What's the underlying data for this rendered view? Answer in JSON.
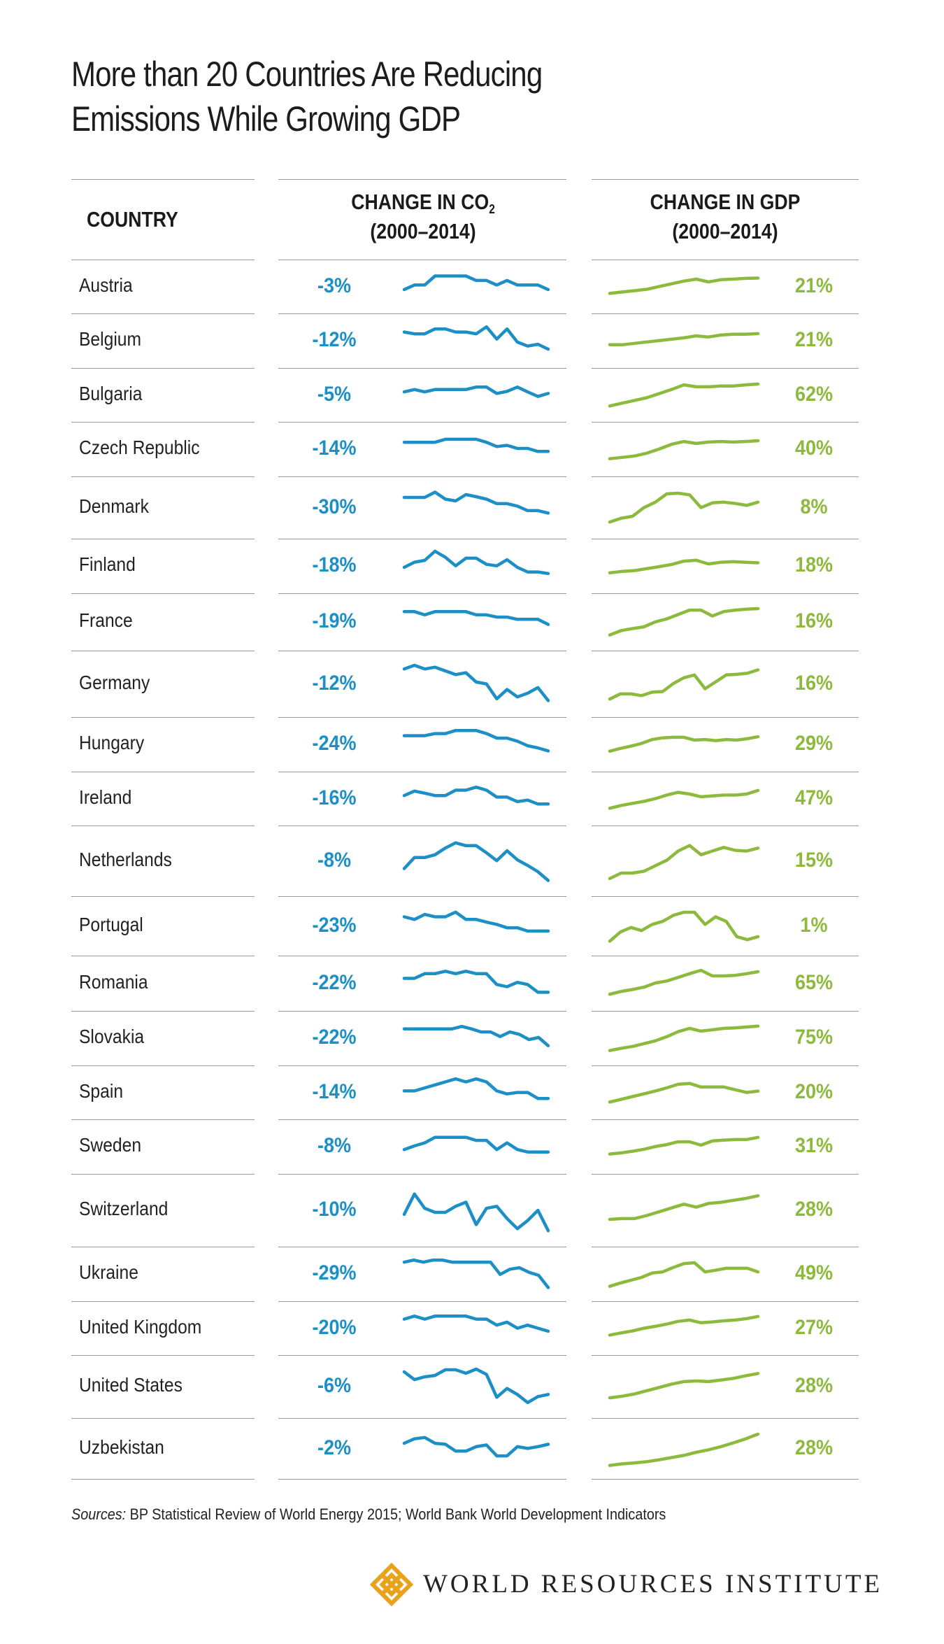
{
  "title_line1": "More than 20 Countries Are Reducing",
  "title_line2": "Emissions While Growing GDP",
  "headers": {
    "country": "COUNTRY",
    "co2_line1": "CHANGE IN CO",
    "co2_sub": "2",
    "co2_line2": "(2000–2014)",
    "gdp_line1": "CHANGE IN GDP",
    "gdp_line2": "(2000–2014)"
  },
  "colors": {
    "co2": "#1b8fc6",
    "gdp": "#8dba3c",
    "rule": "#9a9a9a"
  },
  "chart_data": {
    "type": "table",
    "columns": [
      "COUNTRY",
      "CHANGE IN CO2 (2000–2014)",
      "CHANGE IN GDP (2000–2014)"
    ],
    "rows": [
      {
        "country": "Austria",
        "co2": "-3%",
        "gdp": "21%",
        "co2_series": [
          0.4,
          0.55,
          0.55,
          0.85,
          0.85,
          0.85,
          0.85,
          0.7,
          0.7,
          0.55,
          0.7,
          0.55,
          0.55,
          0.55,
          0.4
        ],
        "gdp_series": [
          0.3,
          0.35,
          0.4,
          0.45,
          0.55,
          0.65,
          0.75,
          0.82,
          0.72,
          0.8,
          0.82,
          0.85,
          0.86
        ]
      },
      {
        "country": "Belgium",
        "co2": "-12%",
        "gdp": "21%",
        "co2_series": [
          0.78,
          0.72,
          0.72,
          0.88,
          0.88,
          0.78,
          0.78,
          0.72,
          0.95,
          0.55,
          0.88,
          0.45,
          0.32,
          0.38,
          0.22
        ],
        "gdp_series": [
          0.4,
          0.4,
          0.45,
          0.5,
          0.55,
          0.6,
          0.65,
          0.72,
          0.68,
          0.75,
          0.78,
          0.78,
          0.8
        ]
      },
      {
        "country": "Bulgaria",
        "co2": "-5%",
        "gdp": "62%",
        "co2_series": [
          0.6,
          0.68,
          0.6,
          0.68,
          0.68,
          0.68,
          0.68,
          0.76,
          0.76,
          0.55,
          0.62,
          0.76,
          0.6,
          0.45,
          0.55
        ],
        "gdp_series": [
          0.15,
          0.25,
          0.35,
          0.45,
          0.6,
          0.75,
          0.92,
          0.85,
          0.85,
          0.88,
          0.88,
          0.92,
          0.95
        ]
      },
      {
        "country": "Czech Republic",
        "co2": "-14%",
        "gdp": "40%",
        "co2_series": [
          0.72,
          0.72,
          0.72,
          0.72,
          0.82,
          0.82,
          0.82,
          0.82,
          0.72,
          0.58,
          0.62,
          0.52,
          0.52,
          0.42,
          0.42
        ],
        "gdp_series": [
          0.2,
          0.25,
          0.3,
          0.4,
          0.55,
          0.72,
          0.82,
          0.75,
          0.8,
          0.82,
          0.8,
          0.82,
          0.85
        ]
      },
      {
        "country": "Denmark",
        "co2": "-30%",
        "gdp": "8%",
        "co2_series": [
          0.8,
          0.8,
          0.8,
          0.95,
          0.75,
          0.7,
          0.88,
          0.82,
          0.75,
          0.62,
          0.62,
          0.55,
          0.42,
          0.42,
          0.35
        ],
        "gdp_series": [
          0.1,
          0.22,
          0.28,
          0.55,
          0.72,
          0.98,
          1.0,
          0.95,
          0.55,
          0.7,
          0.72,
          0.68,
          0.62,
          0.72
        ]
      },
      {
        "country": "Finland",
        "co2": "-18%",
        "gdp": "18%",
        "co2_series": [
          0.45,
          0.62,
          0.68,
          0.98,
          0.78,
          0.5,
          0.75,
          0.75,
          0.55,
          0.5,
          0.7,
          0.45,
          0.3,
          0.3,
          0.25
        ],
        "gdp_series": [
          0.3,
          0.35,
          0.38,
          0.45,
          0.52,
          0.6,
          0.72,
          0.75,
          0.62,
          0.68,
          0.7,
          0.68,
          0.66
        ]
      },
      {
        "country": "France",
        "co2": "-19%",
        "gdp": "16%",
        "co2_series": [
          0.82,
          0.82,
          0.72,
          0.82,
          0.82,
          0.82,
          0.82,
          0.72,
          0.72,
          0.65,
          0.65,
          0.58,
          0.58,
          0.58,
          0.42
        ],
        "gdp_series": [
          0.1,
          0.25,
          0.32,
          0.38,
          0.55,
          0.65,
          0.8,
          0.95,
          0.95,
          0.75,
          0.9,
          0.95,
          0.98,
          1.0
        ]
      },
      {
        "country": "Germany",
        "co2": "-12%",
        "gdp": "16%",
        "co2_series": [
          0.9,
          1.0,
          0.9,
          0.95,
          0.85,
          0.75,
          0.8,
          0.55,
          0.5,
          0.1,
          0.35,
          0.15,
          0.25,
          0.4,
          0.05
        ],
        "gdp_series": [
          0.1,
          0.25,
          0.25,
          0.2,
          0.3,
          0.32,
          0.55,
          0.72,
          0.8,
          0.4,
          0.6,
          0.8,
          0.82,
          0.85,
          0.95
        ]
      },
      {
        "country": "Hungary",
        "co2": "-24%",
        "gdp": "29%",
        "co2_series": [
          0.78,
          0.78,
          0.78,
          0.85,
          0.85,
          0.95,
          0.95,
          0.95,
          0.85,
          0.7,
          0.7,
          0.6,
          0.45,
          0.38,
          0.28
        ],
        "gdp_series": [
          0.3,
          0.4,
          0.48,
          0.58,
          0.72,
          0.78,
          0.8,
          0.8,
          0.7,
          0.72,
          0.68,
          0.72,
          0.7,
          0.75,
          0.82
        ]
      },
      {
        "country": "Ireland",
        "co2": "-16%",
        "gdp": "47%",
        "co2_series": [
          0.6,
          0.75,
          0.68,
          0.6,
          0.6,
          0.78,
          0.78,
          0.88,
          0.78,
          0.55,
          0.55,
          0.4,
          0.45,
          0.32,
          0.32
        ],
        "gdp_series": [
          0.2,
          0.3,
          0.38,
          0.45,
          0.55,
          0.68,
          0.78,
          0.72,
          0.62,
          0.65,
          0.68,
          0.68,
          0.72,
          0.85
        ]
      },
      {
        "country": "Netherlands",
        "co2": "-8%",
        "gdp": "15%",
        "co2_series": [
          0.3,
          0.58,
          0.58,
          0.65,
          0.82,
          0.95,
          0.88,
          0.88,
          0.7,
          0.5,
          0.75,
          0.52,
          0.38,
          0.22,
          0.0
        ],
        "gdp_series": [
          0.05,
          0.2,
          0.2,
          0.25,
          0.4,
          0.55,
          0.8,
          0.95,
          0.7,
          0.8,
          0.9,
          0.82,
          0.8,
          0.88
        ]
      },
      {
        "country": "Portugal",
        "co2": "-23%",
        "gdp": "1%",
        "co2_series": [
          0.78,
          0.7,
          0.85,
          0.78,
          0.78,
          0.92,
          0.7,
          0.7,
          0.62,
          0.55,
          0.45,
          0.45,
          0.35,
          0.35,
          0.35
        ],
        "gdp_series": [
          0.05,
          0.35,
          0.5,
          0.4,
          0.6,
          0.7,
          0.9,
          1.0,
          1.0,
          0.6,
          0.85,
          0.7,
          0.2,
          0.1,
          0.2
        ]
      },
      {
        "country": "Romania",
        "co2": "-22%",
        "gdp": "65%",
        "co2_series": [
          0.65,
          0.65,
          0.8,
          0.8,
          0.88,
          0.8,
          0.88,
          0.8,
          0.8,
          0.45,
          0.38,
          0.52,
          0.45,
          0.2,
          0.2
        ],
        "gdp_series": [
          0.15,
          0.25,
          0.32,
          0.4,
          0.55,
          0.62,
          0.75,
          0.88,
          1.0,
          0.8,
          0.8,
          0.82,
          0.88,
          0.95
        ]
      },
      {
        "country": "Slovakia",
        "co2": "-22%",
        "gdp": "75%",
        "co2_series": [
          0.8,
          0.8,
          0.8,
          0.8,
          0.8,
          0.8,
          0.88,
          0.8,
          0.7,
          0.7,
          0.55,
          0.7,
          0.62,
          0.45,
          0.52,
          0.25
        ],
        "gdp_series": [
          0.1,
          0.18,
          0.25,
          0.35,
          0.45,
          0.6,
          0.78,
          0.9,
          0.8,
          0.85,
          0.9,
          0.92,
          0.95,
          0.98
        ]
      },
      {
        "country": "Spain",
        "co2": "-14%",
        "gdp": "20%",
        "co2_series": [
          0.55,
          0.55,
          0.65,
          0.75,
          0.85,
          0.95,
          0.85,
          0.95,
          0.85,
          0.55,
          0.45,
          0.5,
          0.5,
          0.3,
          0.3
        ],
        "gdp_series": [
          0.2,
          0.3,
          0.4,
          0.5,
          0.6,
          0.72,
          0.85,
          0.88,
          0.75,
          0.75,
          0.75,
          0.65,
          0.55,
          0.6
        ]
      },
      {
        "country": "Sweden",
        "co2": "-8%",
        "gdp": "31%",
        "co2_series": [
          0.4,
          0.52,
          0.62,
          0.8,
          0.8,
          0.8,
          0.8,
          0.7,
          0.7,
          0.4,
          0.62,
          0.4,
          0.32,
          0.32,
          0.32
        ],
        "gdp_series": [
          0.28,
          0.32,
          0.38,
          0.45,
          0.55,
          0.62,
          0.72,
          0.72,
          0.6,
          0.75,
          0.78,
          0.8,
          0.8,
          0.88
        ]
      },
      {
        "country": "Switzerland",
        "co2": "-10%",
        "gdp": "28%",
        "co2_series": [
          0.4,
          0.9,
          0.55,
          0.45,
          0.45,
          0.6,
          0.7,
          0.15,
          0.55,
          0.6,
          0.3,
          0.05,
          0.25,
          0.5,
          0.0
        ],
        "gdp_series": [
          0.3,
          0.32,
          0.32,
          0.4,
          0.5,
          0.6,
          0.7,
          0.62,
          0.72,
          0.75,
          0.8,
          0.85,
          0.92
        ]
      },
      {
        "country": "Ukraine",
        "co2": "-29%",
        "gdp": "49%",
        "co2_series": [
          0.88,
          0.95,
          0.88,
          0.95,
          0.95,
          0.88,
          0.88,
          0.88,
          0.88,
          0.88,
          0.48,
          0.65,
          0.7,
          0.55,
          0.45,
          0.05
        ],
        "gdp_series": [
          0.1,
          0.22,
          0.32,
          0.42,
          0.58,
          0.62,
          0.78,
          0.92,
          0.95,
          0.62,
          0.68,
          0.75,
          0.75,
          0.75,
          0.62
        ]
      },
      {
        "country": "United Kingdom",
        "co2": "-20%",
        "gdp": "27%",
        "co2_series": [
          0.8,
          0.9,
          0.8,
          0.9,
          0.9,
          0.9,
          0.9,
          0.8,
          0.8,
          0.6,
          0.7,
          0.5,
          0.6,
          0.5,
          0.4
        ],
        "gdp_series": [
          0.3,
          0.38,
          0.45,
          0.55,
          0.62,
          0.7,
          0.8,
          0.85,
          0.75,
          0.78,
          0.82,
          0.85,
          0.9,
          0.98
        ]
      },
      {
        "country": "United States",
        "co2": "-6%",
        "gdp": "28%",
        "co2_series": [
          0.92,
          0.7,
          0.78,
          0.82,
          0.98,
          0.98,
          0.88,
          1.0,
          0.85,
          0.2,
          0.45,
          0.28,
          0.05,
          0.22,
          0.28
        ],
        "gdp_series": [
          0.2,
          0.25,
          0.32,
          0.42,
          0.52,
          0.62,
          0.7,
          0.72,
          0.7,
          0.75,
          0.8,
          0.88,
          0.95
        ]
      },
      {
        "country": "Uzbekistan",
        "co2": "-2%",
        "gdp": "28%",
        "co2_series": [
          0.65,
          0.78,
          0.82,
          0.65,
          0.62,
          0.42,
          0.42,
          0.55,
          0.6,
          0.28,
          0.28,
          0.55,
          0.5,
          0.55,
          0.62
        ],
        "gdp_series": [
          0.0,
          0.05,
          0.08,
          0.12,
          0.18,
          0.25,
          0.32,
          0.42,
          0.5,
          0.6,
          0.72,
          0.85,
          1.0
        ]
      }
    ]
  },
  "sources_label": "Sources:",
  "sources_text": " BP Statistical Review of World Energy 2015; World Bank World Development Indicators",
  "logo_text": "WORLD RESOURCES INSTITUTE"
}
